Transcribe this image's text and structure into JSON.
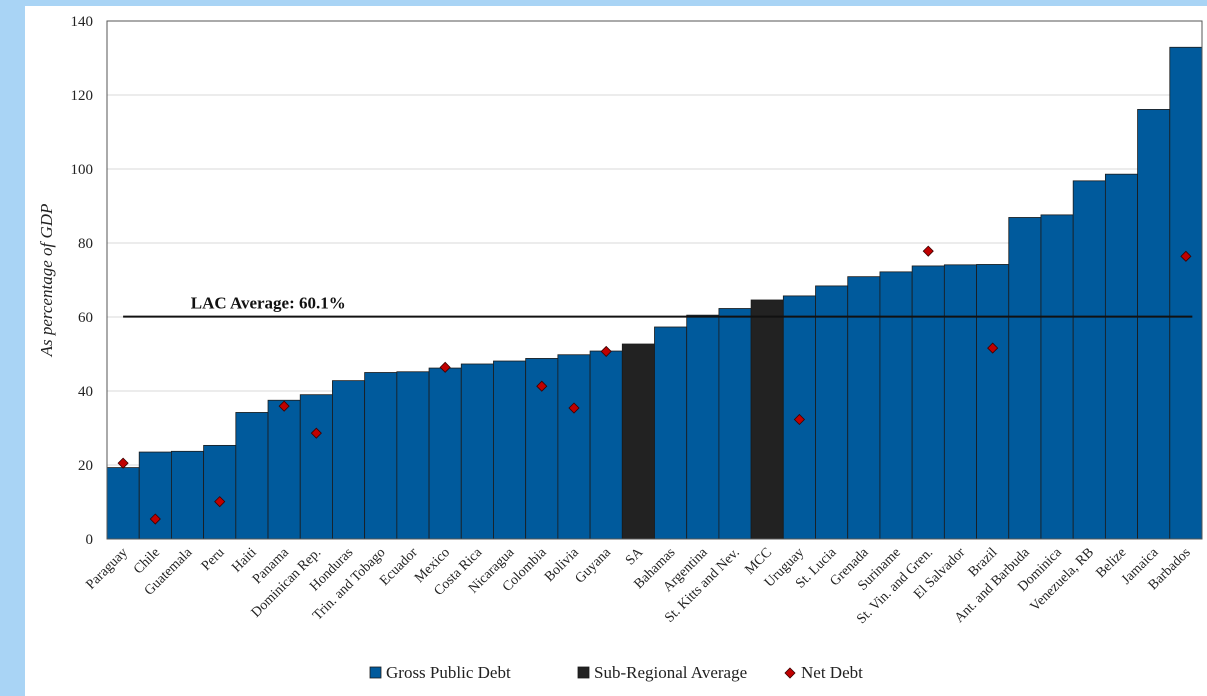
{
  "chart_data": {
    "type": "bar",
    "ylabel": "As percentage of GDP",
    "ylim": [
      0,
      140
    ],
    "yticks": [
      0,
      20,
      40,
      60,
      80,
      100,
      120,
      140
    ],
    "grid": true,
    "legend_position": "bottom",
    "categories": [
      "Paraguay",
      "Chile",
      "Guatemala",
      "Peru",
      "Haiti",
      "Panama",
      "Dominican Rep.",
      "Honduras",
      "Trin. and Tobago",
      "Ecuador",
      "Mexico",
      "Costa Rica",
      "Nicaragua",
      "Colombia",
      "Bolivia",
      "Guyana",
      "SA",
      "Bahamas",
      "Argentina",
      "St. Kitts and Nev.",
      "MCC",
      "Uruguay",
      "St. Lucia",
      "Grenada",
      "Suriname",
      "St. Vin. and Gren.",
      "El Salvador",
      "Brazil",
      "Ant. and Barbuda",
      "Dominica",
      "Venezuela, RB",
      "Belize",
      "Jamaica",
      "Barbados"
    ],
    "series": [
      {
        "name": "Gross Public Debt",
        "color": "#005a9c",
        "values": [
          19.3,
          23.5,
          23.7,
          25.3,
          34.2,
          37.5,
          39.0,
          42.8,
          45.0,
          45.2,
          46.2,
          47.3,
          48.1,
          48.8,
          49.8,
          50.8,
          null,
          57.3,
          60.5,
          62.3,
          null,
          65.7,
          68.4,
          70.9,
          72.2,
          73.8,
          74.1,
          74.2,
          86.9,
          87.6,
          96.8,
          98.6,
          116.1,
          132.9
        ]
      },
      {
        "name": "Sub-Regional Average",
        "color": "#222222",
        "values": [
          null,
          null,
          null,
          null,
          null,
          null,
          null,
          null,
          null,
          null,
          null,
          null,
          null,
          null,
          null,
          null,
          52.7,
          null,
          null,
          null,
          64.6,
          null,
          null,
          null,
          null,
          null,
          null,
          null,
          null,
          null,
          null,
          null,
          null,
          null
        ]
      },
      {
        "name": "Net Debt",
        "color": "#c00000",
        "marker": "diamond",
        "values": [
          20.5,
          5.4,
          null,
          10.1,
          null,
          35.9,
          28.6,
          null,
          null,
          null,
          46.4,
          null,
          null,
          41.3,
          35.4,
          50.7,
          null,
          null,
          null,
          null,
          null,
          32.3,
          null,
          null,
          null,
          77.8,
          null,
          51.6,
          null,
          null,
          null,
          null,
          null,
          76.4
        ]
      }
    ],
    "reference_line": {
      "value": 60.1,
      "label": "LAC Average: 60.1%"
    }
  }
}
